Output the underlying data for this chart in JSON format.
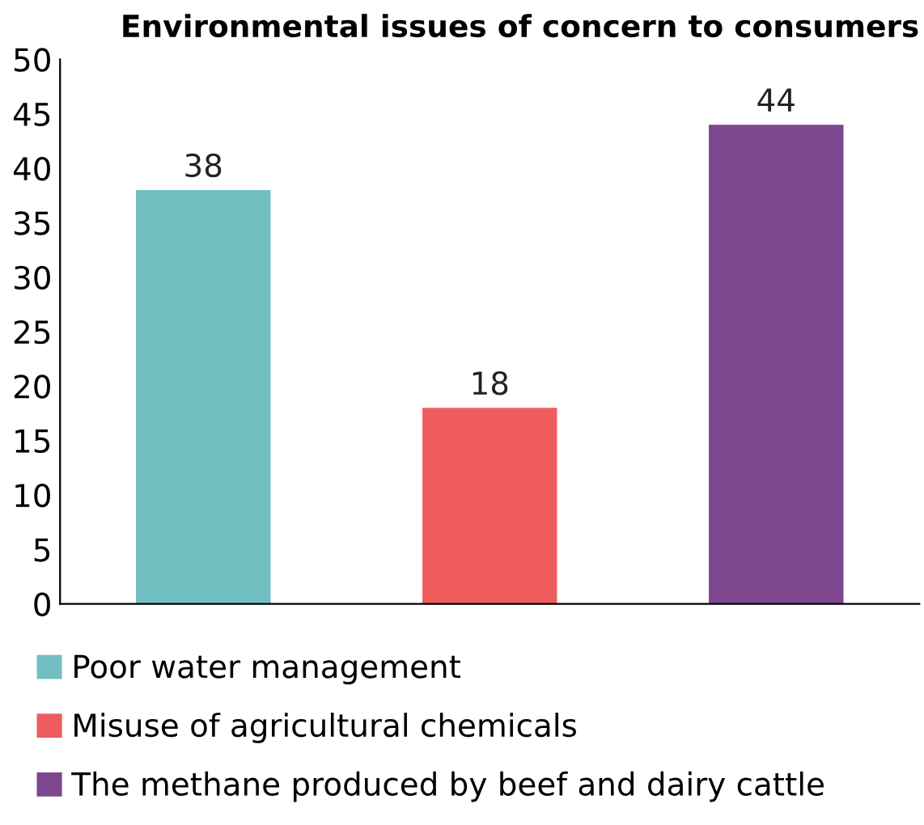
{
  "chart_data": {
    "type": "bar",
    "title": "Environmental issues of concern to consumers",
    "categories": [
      null,
      null,
      null
    ],
    "series": [
      {
        "name": "Poor water management",
        "color": "#72bfc1",
        "values": [
          38,
          null,
          null
        ]
      },
      {
        "name": "Misuse of agricultural chemicals",
        "color": "#ef5c5e",
        "values": [
          null,
          18,
          null
        ]
      },
      {
        "name": "The methane produced by beef and dairy cattle",
        "color": "#7d468e",
        "values": [
          null,
          null,
          44
        ]
      }
    ],
    "ylim": [
      0,
      50
    ],
    "yticks": [
      0,
      5,
      10,
      15,
      20,
      25,
      30,
      35,
      40,
      45,
      50
    ],
    "data_labels": true,
    "grid": false,
    "legend": "bottom"
  }
}
